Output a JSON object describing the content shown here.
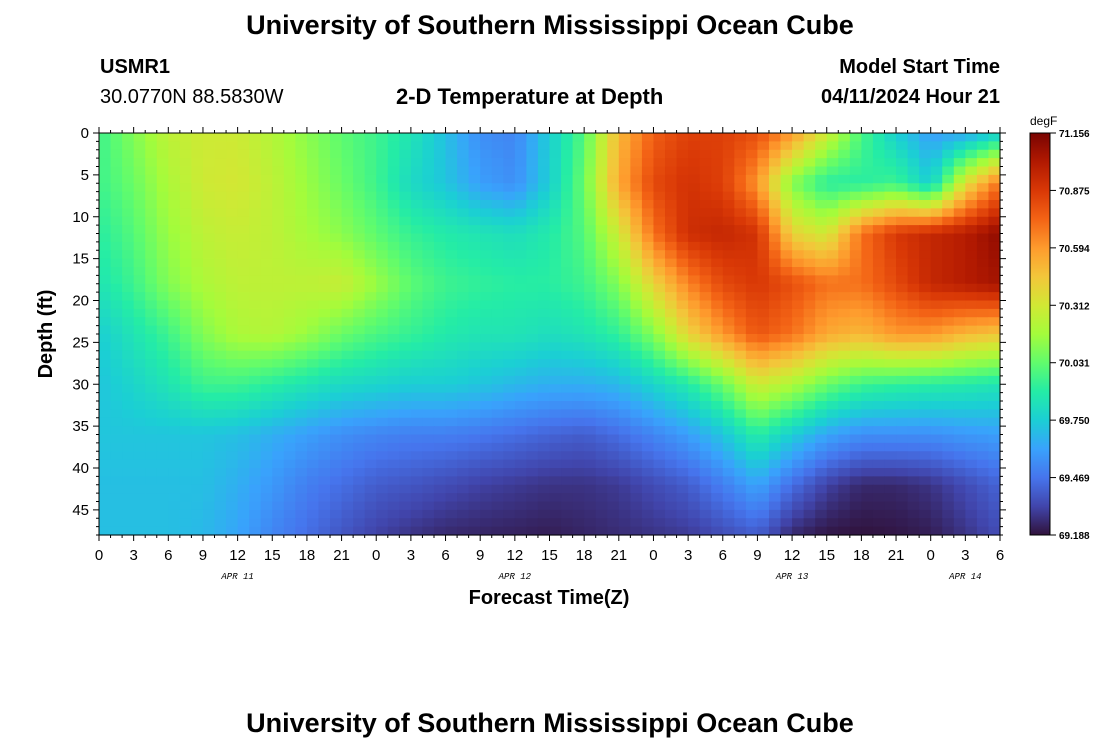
{
  "header": {
    "title": "University of Southern Mississippi Ocean Cube",
    "station_id": "USMR1",
    "coordinates": "30.0770N  88.5830W",
    "subtitle": "2-D Temperature at Depth",
    "model_start_label": "Model Start Time",
    "model_start_value": "04/11/2024 Hour 21"
  },
  "footer": {
    "title": "University of Southern Mississippi Ocean Cube"
  },
  "chart_data": {
    "type": "heatmap",
    "title": "2-D Temperature at Depth",
    "xlabel": "Forecast Time(Z)",
    "ylabel": "Depth (ft)",
    "x_unit": "hours from Apr 11 00Z",
    "xlim": [
      0,
      78
    ],
    "ylim": [
      0,
      48
    ],
    "x_tick_values": [
      0,
      3,
      6,
      9,
      12,
      15,
      18,
      21,
      24,
      27,
      30,
      33,
      36,
      39,
      42,
      45,
      48,
      51,
      54,
      57,
      60,
      63,
      66,
      69,
      72,
      75,
      78
    ],
    "x_tick_labels": [
      "0",
      "3",
      "6",
      "9",
      "12",
      "15",
      "18",
      "21",
      "0",
      "3",
      "6",
      "9",
      "12",
      "15",
      "18",
      "21",
      "0",
      "3",
      "6",
      "9",
      "12",
      "15",
      "18",
      "21",
      "0",
      "3",
      "6"
    ],
    "date_labels": [
      {
        "label": "APR 11",
        "x": 12
      },
      {
        "label": "APR 12",
        "x": 36
      },
      {
        "label": "APR 13",
        "x": 60
      },
      {
        "label": "APR 14",
        "x": 75
      }
    ],
    "y_ticks": [
      0,
      5,
      10,
      15,
      20,
      25,
      30,
      35,
      40,
      45
    ],
    "colorbar": {
      "unit": "degF",
      "min": 69.188,
      "max": 71.156,
      "tick_labels": [
        "71.156",
        "70.875",
        "70.594",
        "70.312",
        "70.031",
        "69.750",
        "69.469",
        "69.188"
      ],
      "colors": [
        "#30123b",
        "#4145ab",
        "#4675ed",
        "#39a2fc",
        "#1bcfd4",
        "#24eca6",
        "#61fc6c",
        "#a4fc3b",
        "#d1e834",
        "#f3c63a",
        "#fe9b2d",
        "#f36315",
        "#d93806",
        "#b11901",
        "#7a0402"
      ]
    },
    "grid": false,
    "depths_ft": [
      0,
      6,
      12,
      18,
      24,
      30,
      36,
      42,
      48
    ],
    "times_h": [
      0,
      3,
      6,
      9,
      12,
      15,
      18,
      21,
      24,
      27,
      30,
      33,
      36,
      39,
      42,
      45,
      48,
      51,
      54,
      57,
      60,
      63,
      66,
      69,
      72,
      75,
      78
    ],
    "temperature_degF": [
      [
        69.95,
        70.1,
        70.25,
        70.3,
        70.3,
        70.22,
        70.12,
        70.02,
        69.95,
        69.85,
        69.7,
        69.55,
        69.52,
        69.75,
        70.0,
        70.5,
        70.75,
        70.85,
        70.85,
        70.8,
        70.6,
        70.3,
        69.98,
        69.75,
        69.6,
        69.62,
        69.75
      ],
      [
        69.95,
        70.05,
        70.2,
        70.3,
        70.32,
        70.25,
        70.15,
        70.05,
        69.95,
        69.8,
        69.72,
        69.6,
        69.55,
        69.75,
        70.05,
        70.55,
        70.82,
        70.9,
        70.85,
        70.6,
        70.1,
        69.9,
        69.9,
        69.95,
        69.75,
        70.35,
        70.7
      ],
      [
        69.9,
        70.0,
        70.15,
        70.25,
        70.28,
        70.25,
        70.18,
        70.12,
        70.02,
        69.93,
        69.88,
        69.85,
        69.82,
        69.88,
        70.0,
        70.3,
        70.7,
        70.92,
        70.95,
        70.9,
        70.4,
        70.3,
        70.7,
        70.88,
        70.95,
        71.0,
        71.1
      ],
      [
        69.85,
        69.95,
        70.1,
        70.2,
        70.25,
        70.25,
        70.25,
        70.28,
        70.15,
        70.02,
        69.95,
        69.92,
        69.9,
        69.9,
        69.95,
        70.1,
        70.4,
        70.65,
        70.82,
        70.88,
        70.8,
        70.7,
        70.7,
        70.82,
        70.95,
        71.0,
        71.05
      ],
      [
        69.75,
        69.85,
        69.95,
        70.1,
        70.2,
        70.22,
        70.15,
        70.05,
        69.98,
        69.93,
        69.88,
        69.85,
        69.85,
        69.82,
        69.85,
        69.92,
        70.1,
        70.4,
        70.6,
        70.78,
        70.7,
        70.55,
        70.5,
        70.6,
        70.6,
        70.5,
        70.45
      ],
      [
        69.72,
        69.78,
        69.85,
        69.95,
        69.95,
        69.9,
        69.85,
        69.8,
        69.78,
        69.75,
        69.75,
        69.72,
        69.68,
        69.65,
        69.65,
        69.68,
        69.78,
        69.88,
        70.05,
        70.3,
        70.2,
        70.05,
        69.95,
        69.92,
        69.9,
        69.88,
        69.85
      ],
      [
        69.72,
        69.72,
        69.72,
        69.72,
        69.7,
        69.65,
        69.6,
        69.55,
        69.52,
        69.5,
        69.5,
        69.48,
        69.45,
        69.42,
        69.4,
        69.45,
        69.52,
        69.6,
        69.72,
        69.9,
        69.75,
        69.62,
        69.55,
        69.55,
        69.55,
        69.58,
        69.6
      ],
      [
        69.7,
        69.7,
        69.7,
        69.7,
        69.65,
        69.58,
        69.5,
        69.45,
        69.4,
        69.38,
        69.35,
        69.32,
        69.3,
        69.28,
        69.28,
        69.3,
        69.35,
        69.4,
        69.5,
        69.62,
        69.45,
        69.32,
        69.25,
        69.25,
        69.28,
        69.35,
        69.42
      ],
      [
        69.7,
        69.7,
        69.7,
        69.68,
        69.62,
        69.52,
        69.45,
        69.38,
        69.32,
        69.28,
        69.25,
        69.24,
        69.23,
        69.22,
        69.24,
        69.26,
        69.28,
        69.3,
        69.35,
        69.4,
        69.25,
        69.2,
        69.19,
        69.2,
        69.22,
        69.28,
        69.35
      ]
    ]
  }
}
